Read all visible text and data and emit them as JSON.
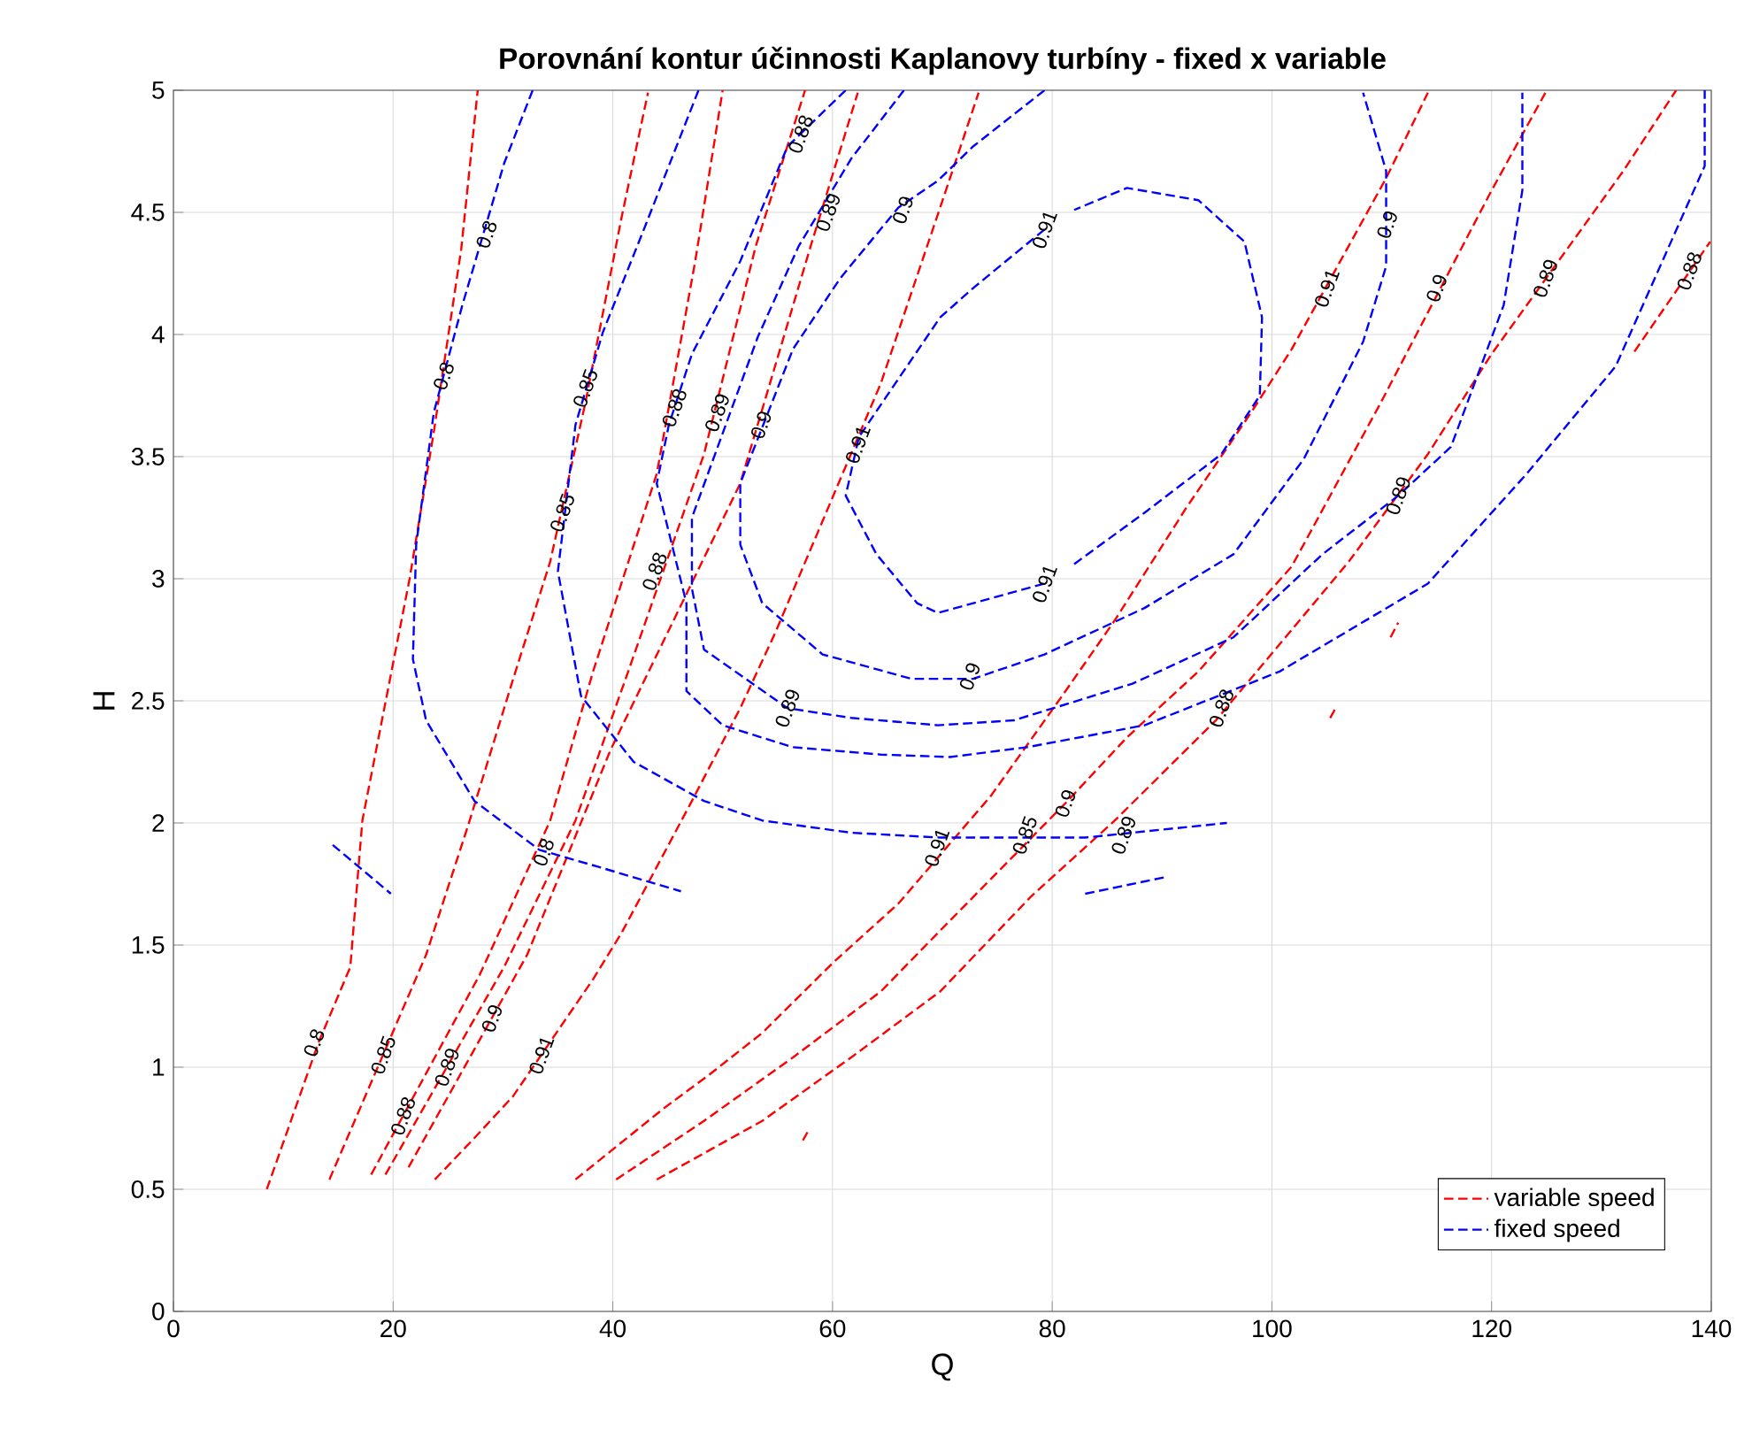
{
  "chart_data": {
    "type": "line",
    "title": "Porovnání kontur účinnosti Kaplanovy turbíny - fixed x variable",
    "xlabel": "Q",
    "ylabel": "H",
    "xlim": [
      0,
      140
    ],
    "ylim": [
      0,
      5
    ],
    "xticks": [
      0,
      20,
      40,
      60,
      80,
      100,
      120,
      140
    ],
    "yticks": [
      0,
      0.5,
      1,
      1.5,
      2,
      2.5,
      3,
      3.5,
      4,
      4.5,
      5
    ],
    "grid": true,
    "legend": "bottom right",
    "line_style": "dashed",
    "marker": "none",
    "series": [
      {
        "name": "variable speed",
        "color": "#ff0000",
        "x": [
          8.5,
          13.2,
          16.1,
          17.2,
          21.5,
          23.7,
          26.2,
          27.7
        ],
        "values": [
          0.5,
          1.1,
          1.41,
          2.01,
          3.0,
          3.6,
          4.35,
          5.0
        ]
      },
      {
        "color": "#ff0000",
        "x": [
          14.2,
          23,
          26.9,
          31,
          34.3,
          37.5,
          40.8,
          43.2
        ],
        "values": [
          0.54,
          1.46,
          2.0,
          2.6,
          3.07,
          3.72,
          4.48,
          4.99
        ]
      },
      {
        "color": "#ff0000",
        "x": [
          18,
          27.9,
          34.3,
          38.2,
          44,
          47.5,
          50
        ],
        "values": [
          0.56,
          1.38,
          2.01,
          2.62,
          3.43,
          4.3,
          5.0
        ]
      },
      {
        "color": "#ff0000",
        "x": [
          19.3,
          30.1,
          36.6,
          41.4,
          48.3,
          53,
          57.5
        ],
        "values": [
          0.56,
          1.41,
          2.01,
          2.62,
          3.51,
          4.36,
          5.0
        ]
      },
      {
        "color": "#ff0000",
        "x": [
          21.4,
          32.2,
          39.8,
          51.6,
          58,
          62.3
        ],
        "values": [
          0.59,
          1.46,
          2.3,
          3.39,
          4.36,
          4.99
        ]
      },
      {
        "color": "#ff0000",
        "x": [
          23.8,
          27.4,
          30.9,
          38.2,
          40.8,
          47.2,
          51.6,
          54.8,
          64.4,
          69.8,
          73.3
        ],
        "values": [
          0.54,
          0.71,
          0.88,
          1.36,
          1.55,
          2.09,
          2.47,
          2.78,
          3.8,
          4.52,
          4.99
        ]
      },
      {
        "color": "#ff0000",
        "x": [
          36.6,
          44.6,
          48.8,
          53.6,
          60.1,
          66,
          74.4,
          80.9,
          85.7,
          92.2,
          98.1,
          101.8,
          110.4,
          114.2
        ],
        "values": [
          0.54,
          0.83,
          0.97,
          1.14,
          1.43,
          1.67,
          2.11,
          2.52,
          2.83,
          3.29,
          3.68,
          3.94,
          4.64,
          4.99
        ]
      },
      {
        "color": "#ff0000",
        "x": [
          40.3,
          48.3,
          56.4,
          64.4,
          69.6,
          81.4,
          86.8,
          93.3,
          101.8,
          109.9,
          120,
          124.9
        ],
        "values": [
          0.54,
          0.78,
          1.04,
          1.31,
          1.55,
          2.09,
          2.35,
          2.62,
          3.05,
          3.72,
          4.59,
          4.99
        ]
      },
      {
        "color": "#ff0000",
        "x": [
          44,
          53.6,
          61.7,
          69.8,
          78.1,
          85.7,
          94.9,
          107,
          114.2,
          120,
          132,
          136.8
        ],
        "values": [
          0.54,
          0.78,
          1.04,
          1.31,
          1.7,
          2.01,
          2.42,
          3.07,
          3.51,
          3.92,
          4.67,
          5.0
        ]
      },
      {
        "color": "#ff0000",
        "x": [
          57.3,
          57.8,
          80,
          105.3,
          105.8,
          108,
          110.8,
          111.5,
          120,
          133,
          139.9
        ],
        "values": [
          0.7,
          0.74,
          null,
          2.43,
          2.47,
          null,
          2.76,
          2.82,
          null,
          3.93,
          4.38
        ]
      },
      {
        "name": "fixed speed",
        "color": "#0000ff",
        "x": [
          32.7,
          30.1,
          26.3,
          23.7,
          22.1,
          21.8,
          23,
          27.4,
          33.3,
          38.7,
          46.2
        ],
        "values": [
          5.0,
          4.7,
          4.12,
          3.68,
          3.14,
          2.67,
          2.42,
          2.09,
          1.89,
          1.82,
          1.72
        ]
      },
      {
        "color": "#0000ff",
        "x": [
          14.5,
          19.8
        ],
        "values": [
          1.91,
          1.71
        ]
      },
      {
        "color": "#0000ff",
        "x": [
          47.8,
          43,
          39.1,
          36.6,
          35,
          37.1,
          41.9,
          48.3,
          53.6,
          61.7,
          69.8,
          83,
          95.9
        ],
        "values": [
          5.0,
          4.45,
          4.01,
          3.63,
          3.03,
          2.52,
          2.25,
          2.09,
          2.01,
          1.96,
          1.94,
          1.94,
          2.0
        ]
      },
      {
        "color": "#0000ff",
        "x": [
          83,
          90.5
        ],
        "values": [
          1.71,
          1.78
        ]
      },
      {
        "color": "#0000ff",
        "x": [
          61.2,
          55.9,
          51.6,
          47.2,
          45.1,
          44,
          46.7,
          46.7,
          50,
          56.4,
          64.4,
          70.7,
          77.7,
          88.4,
          100.7,
          114.2,
          123.2,
          131.3,
          139.4,
          139.4
        ],
        "values": [
          5.0,
          4.77,
          4.3,
          3.92,
          3.63,
          3.39,
          2.9,
          2.54,
          2.4,
          2.31,
          2.28,
          2.27,
          2.31,
          2.4,
          2.62,
          2.98,
          3.43,
          3.87,
          4.69,
          5.0
        ]
      },
      {
        "color": "#0000ff",
        "x": [
          66.5,
          61.7,
          56.9,
          53.2,
          47.2,
          47.2,
          48.3,
          55.9,
          61.7,
          69.6,
          76.5,
          87.3,
          96.5,
          104.6,
          111.5,
          116.3,
          121.1,
          122.8,
          122.8
        ],
        "values": [
          5.0,
          4.72,
          4.36,
          3.99,
          3.25,
          2.96,
          2.71,
          2.47,
          2.43,
          2.4,
          2.42,
          2.57,
          2.76,
          3.1,
          3.34,
          3.54,
          4.12,
          4.59,
          4.99
        ]
      },
      {
        "color": "#0000ff",
        "x": [
          79.3,
          72.8,
          69.6,
          66,
          60.7,
          56.4,
          51.6,
          51.6,
          53.6,
          59.1,
          67.2,
          72.8,
          79.3,
          88.4,
          96.5,
          102.9,
          108.3,
          110.4,
          110.4,
          108.3
        ],
        "values": [
          5.0,
          4.77,
          4.63,
          4.52,
          4.23,
          3.94,
          3.39,
          3.14,
          2.9,
          2.69,
          2.59,
          2.59,
          2.69,
          2.88,
          3.1,
          3.49,
          3.97,
          4.28,
          4.67,
          4.99
        ]
      },
      {
        "color": "#0000ff",
        "x": [
          79.3,
          72.8,
          69.8,
          62.4,
          61.2,
          64,
          67.7,
          69.6,
          79.3
        ],
        "values": [
          4.43,
          4.19,
          4.07,
          3.58,
          3.34,
          3.1,
          2.9,
          2.86,
          2.98
        ]
      },
      {
        "color": "#0000ff",
        "x": [
          82,
          88.4,
          95.4,
          98.9,
          99.1,
          97.5,
          93.3,
          86.8,
          82
        ],
        "values": [
          3.06,
          3.27,
          3.51,
          3.75,
          4.07,
          4.38,
          4.55,
          4.6,
          4.51
        ]
      }
    ],
    "annotations": [
      {
        "text": "0.8",
        "x": 12.8,
        "y": 1.1
      },
      {
        "text": "0.85",
        "x": 19.1,
        "y": 1.05
      },
      {
        "text": "0.88",
        "x": 20.9,
        "y": 0.8
      },
      {
        "text": "0.89",
        "x": 24.9,
        "y": 1.0
      },
      {
        "text": "0.9",
        "x": 29.0,
        "y": 1.2
      },
      {
        "text": "0.91",
        "x": 33.5,
        "y": 1.05
      },
      {
        "text": "0.8",
        "x": 24.6,
        "y": 3.83
      },
      {
        "text": "0.8",
        "x": 28.5,
        "y": 4.41
      },
      {
        "text": "0.85",
        "x": 37.5,
        "y": 3.78
      },
      {
        "text": "0.85",
        "x": 35.4,
        "y": 3.27
      },
      {
        "text": "0.88",
        "x": 45.6,
        "y": 3.7
      },
      {
        "text": "0.89",
        "x": 49.5,
        "y": 3.68
      },
      {
        "text": "0.9",
        "x": 53.5,
        "y": 3.63
      },
      {
        "text": "0.91",
        "x": 62.3,
        "y": 3.55
      },
      {
        "text": "0.88",
        "x": 43.8,
        "y": 3.03
      },
      {
        "text": "0.88",
        "x": 57.1,
        "y": 4.82
      },
      {
        "text": "0.89",
        "x": 59.6,
        "y": 4.5
      },
      {
        "text": "0.9",
        "x": 66.4,
        "y": 4.51
      },
      {
        "text": "0.91",
        "x": 79.3,
        "y": 4.43
      },
      {
        "text": "0.91",
        "x": 79.3,
        "y": 2.98
      },
      {
        "text": "0.9",
        "x": 72.5,
        "y": 2.6
      },
      {
        "text": "0.89",
        "x": 55.9,
        "y": 2.47
      },
      {
        "text": "0.8",
        "x": 33.7,
        "y": 1.88
      },
      {
        "text": "0.91",
        "x": 105,
        "y": 4.19
      },
      {
        "text": "0.9",
        "x": 110.5,
        "y": 4.45
      },
      {
        "text": "0.9",
        "x": 115,
        "y": 4.19
      },
      {
        "text": "0.89",
        "x": 124.9,
        "y": 4.23
      },
      {
        "text": "0.88",
        "x": 138,
        "y": 4.26
      },
      {
        "text": "0.89",
        "x": 111.5,
        "y": 3.34
      },
      {
        "text": "0.88",
        "x": 95.4,
        "y": 2.47
      },
      {
        "text": "0.91",
        "x": 69.5,
        "y": 1.9
      },
      {
        "text": "0.85",
        "x": 77.5,
        "y": 1.95
      },
      {
        "text": "0.9",
        "x": 81.2,
        "y": 2.08
      },
      {
        "text": "0.89",
        "x": 86.5,
        "y": 1.95
      }
    ]
  }
}
